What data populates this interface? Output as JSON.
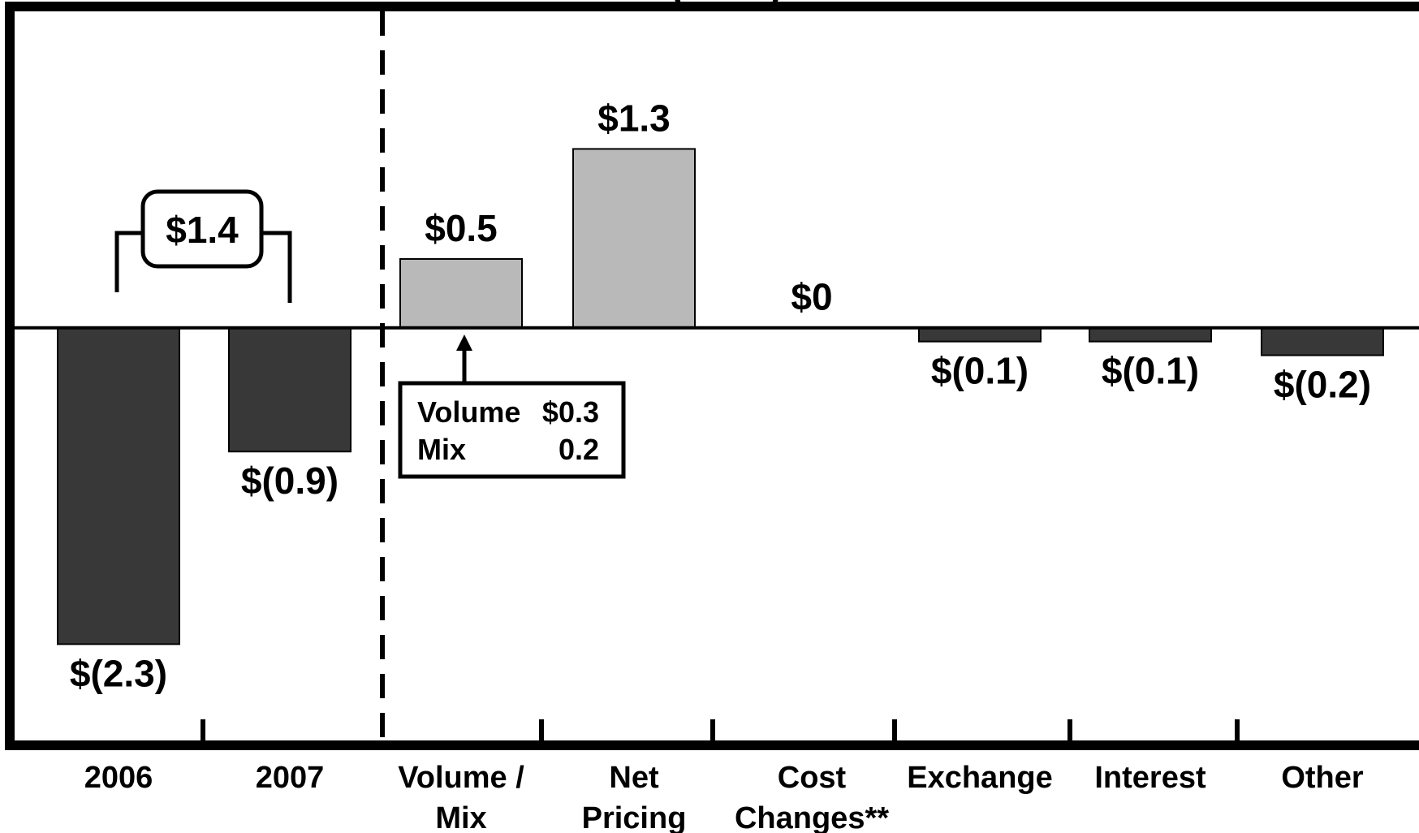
{
  "chart_data": {
    "type": "bar",
    "title_fragment": "(… …)",
    "categories": [
      [
        "2006"
      ],
      [
        "2007"
      ],
      [
        "Volume /",
        "Mix"
      ],
      [
        "Net",
        "Pricing"
      ],
      [
        "Cost",
        "Changes**"
      ],
      [
        "Exchange"
      ],
      [
        "Interest"
      ],
      [
        "Other"
      ]
    ],
    "values": [
      -2.3,
      -0.9,
      0.5,
      1.3,
      0.0,
      -0.1,
      -0.1,
      -0.2
    ],
    "value_labels": [
      "$(2.3)",
      "$(0.9)",
      "$0.5",
      "$1.3",
      "$0",
      "$(0.1)",
      "$(0.1)",
      "$(0.2)"
    ],
    "ylim": [
      -3.0,
      2.3
    ],
    "annotations": {
      "bracket_label": "$1.4",
      "callout": [
        {
          "label": "Volume",
          "value": "$0.3"
        },
        {
          "label": "Mix",
          "value": "0.2"
        }
      ]
    },
    "colors": {
      "negative": "#383838",
      "positive": "#b9b9b9",
      "axis": "#000000"
    }
  }
}
